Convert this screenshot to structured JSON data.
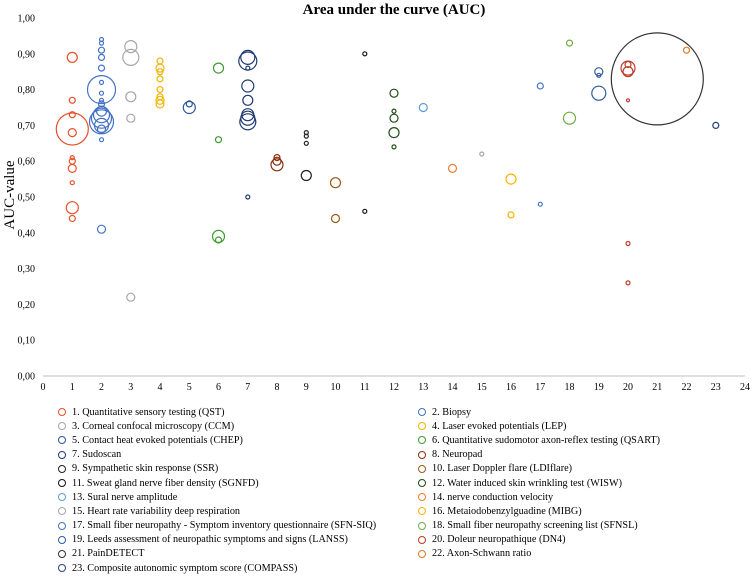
{
  "chart_data": {
    "type": "scatter",
    "title": "Area under the curve (AUC)",
    "xlabel": "",
    "ylabel": "AUC-value",
    "xlim": [
      0,
      24
    ],
    "ylim": [
      0,
      1
    ],
    "x_ticks": [
      "0",
      "1",
      "2",
      "3",
      "4",
      "5",
      "6",
      "7",
      "8",
      "9",
      "10",
      "11",
      "12",
      "13",
      "14",
      "15",
      "16",
      "17",
      "18",
      "19",
      "20",
      "21",
      "22",
      "23",
      "24"
    ],
    "y_ticks": [
      "0,00",
      "0,10",
      "0,20",
      "0,30",
      "0,40",
      "0,50",
      "0,60",
      "0,70",
      "0,80",
      "0,90",
      "1,00"
    ],
    "series": [
      {
        "name": "1. Quantitative sensory testing (QST)",
        "color": "#E8502A",
        "points": [
          [
            1,
            0.89,
            5
          ],
          [
            1,
            0.77,
            3
          ],
          [
            1,
            0.73,
            3
          ],
          [
            1,
            0.69,
            16
          ],
          [
            1,
            0.68,
            4
          ],
          [
            1,
            0.61,
            2
          ],
          [
            1,
            0.6,
            3
          ],
          [
            1,
            0.58,
            4
          ],
          [
            1,
            0.54,
            2
          ],
          [
            1,
            0.47,
            6
          ],
          [
            1,
            0.44,
            3
          ]
        ]
      },
      {
        "name": "2. Biopsy",
        "color": "#4472C4",
        "points": [
          [
            2,
            0.94,
            2
          ],
          [
            2,
            0.93,
            2
          ],
          [
            2,
            0.91,
            3
          ],
          [
            2,
            0.89,
            3
          ],
          [
            2,
            0.86,
            3
          ],
          [
            2,
            0.82,
            2
          ],
          [
            2,
            0.8,
            14
          ],
          [
            2,
            0.79,
            2
          ],
          [
            2,
            0.77,
            2
          ],
          [
            2,
            0.76,
            3
          ],
          [
            2,
            0.74,
            5
          ],
          [
            2,
            0.73,
            8
          ],
          [
            2,
            0.72,
            10
          ],
          [
            2,
            0.71,
            12
          ],
          [
            2,
            0.7,
            7
          ],
          [
            2,
            0.69,
            4
          ],
          [
            2,
            0.66,
            2
          ],
          [
            2,
            0.41,
            4
          ]
        ]
      },
      {
        "name": "3. Corneal confocal microscopy (CCM)",
        "color": "#A5A5A5",
        "points": [
          [
            3,
            0.92,
            6
          ],
          [
            3,
            0.89,
            8
          ],
          [
            3,
            0.78,
            5
          ],
          [
            3,
            0.72,
            4
          ],
          [
            3,
            0.22,
            4
          ]
        ]
      },
      {
        "name": "4. Laser evoked potentials (LEP)",
        "color": "#F4B400",
        "points": [
          [
            4,
            0.88,
            3
          ],
          [
            4,
            0.86,
            4
          ],
          [
            4,
            0.85,
            3
          ],
          [
            4,
            0.83,
            3
          ],
          [
            4,
            0.8,
            3
          ],
          [
            4,
            0.78,
            3
          ],
          [
            4,
            0.77,
            4
          ],
          [
            4,
            0.76,
            4
          ]
        ]
      },
      {
        "name": "5. Contact heat evoked potentials (CHEP)",
        "color": "#2F5597",
        "points": [
          [
            5,
            0.76,
            3
          ],
          [
            5,
            0.75,
            6
          ]
        ]
      },
      {
        "name": "6. Quantitative sudomotor axon-reflex testing (QSART)",
        "color": "#3C9A2E",
        "points": [
          [
            6,
            0.86,
            5
          ],
          [
            6,
            0.66,
            3
          ],
          [
            6,
            0.39,
            6
          ],
          [
            6,
            0.38,
            3
          ]
        ]
      },
      {
        "name": "7. Sudoscan",
        "color": "#1F3A72",
        "points": [
          [
            7,
            0.89,
            7
          ],
          [
            7,
            0.88,
            9
          ],
          [
            7,
            0.86,
            2
          ],
          [
            7,
            0.81,
            6
          ],
          [
            7,
            0.77,
            5
          ],
          [
            7,
            0.73,
            6
          ],
          [
            7,
            0.72,
            7
          ],
          [
            7,
            0.71,
            8
          ],
          [
            7,
            0.5,
            2
          ]
        ]
      },
      {
        "name": "8. Neuropad",
        "color": "#8B2F10",
        "points": [
          [
            8,
            0.61,
            3
          ],
          [
            8,
            0.6,
            4
          ],
          [
            8,
            0.59,
            6
          ]
        ]
      },
      {
        "name": "9. Sympathetic skin response (SSR)",
        "color": "#222222",
        "points": [
          [
            9,
            0.68,
            2
          ],
          [
            9,
            0.67,
            2
          ],
          [
            9,
            0.65,
            2
          ],
          [
            9,
            0.56,
            5
          ]
        ]
      },
      {
        "name": "10. Laser Doppler flare (LDIflare)",
        "color": "#9C5A1A",
        "points": [
          [
            10,
            0.54,
            5
          ],
          [
            10,
            0.44,
            4
          ]
        ]
      },
      {
        "name": "11. Sweat gland nerve fiber density (SGNFD)",
        "color": "#111111",
        "points": [
          [
            11,
            0.9,
            2
          ],
          [
            11,
            0.46,
            2
          ]
        ]
      },
      {
        "name": "12. Water induced skin wrinkling test (WISW)",
        "color": "#1E4D12",
        "points": [
          [
            12,
            0.79,
            4
          ],
          [
            12,
            0.74,
            2
          ],
          [
            12,
            0.72,
            4
          ],
          [
            12,
            0.68,
            5
          ],
          [
            12,
            0.64,
            2
          ]
        ]
      },
      {
        "name": "13. Sural nerve amplitude",
        "color": "#5B9BD5",
        "points": [
          [
            13,
            0.75,
            4
          ]
        ]
      },
      {
        "name": "14. nerve conduction velocity",
        "color": "#ED7D31",
        "points": [
          [
            14,
            0.58,
            4
          ]
        ]
      },
      {
        "name": "15. Heart rate variability deep respiration",
        "color": "#A5A5A5",
        "points": [
          [
            15,
            0.62,
            2
          ]
        ]
      },
      {
        "name": "16. Metaiodobenzylguadine (MIBG)",
        "color": "#FFB300",
        "points": [
          [
            16,
            0.55,
            5
          ],
          [
            16,
            0.45,
            3
          ]
        ]
      },
      {
        "name": "17. Small fiber neuropathy - Symptom inventory questionnaire (SFN-SIQ)",
        "color": "#4472C4",
        "points": [
          [
            17,
            0.81,
            3
          ],
          [
            17,
            0.48,
            2
          ]
        ]
      },
      {
        "name": "18. Small fiber neuropathy screening list (SFNSL)",
        "color": "#70AD47",
        "points": [
          [
            18,
            0.93,
            3
          ],
          [
            18,
            0.72,
            6
          ]
        ]
      },
      {
        "name": "19. Leeds assessment of neuropathic symptoms and signs (LANSS)",
        "color": "#2E5C9E",
        "points": [
          [
            19,
            0.85,
            4
          ],
          [
            19,
            0.84,
            2
          ],
          [
            19,
            0.79,
            7
          ]
        ]
      },
      {
        "name": "20. Doleur neuropathique (DN4)",
        "color": "#C0392B",
        "points": [
          [
            20,
            0.87,
            3
          ],
          [
            20,
            0.86,
            7
          ],
          [
            20,
            0.85,
            5
          ],
          [
            20,
            0.77,
            1.5
          ],
          [
            20,
            0.37,
            2
          ],
          [
            20,
            0.26,
            2
          ]
        ]
      },
      {
        "name": "21. PainDETECT",
        "color": "#333333",
        "points": [
          [
            21,
            0.83,
            46
          ]
        ]
      },
      {
        "name": "22. Axon-Schwann ratio",
        "color": "#E07A1F",
        "points": [
          [
            22,
            0.91,
            3
          ]
        ]
      },
      {
        "name": "23. Composite autonomic symptom score (COMPASS)",
        "color": "#264478",
        "points": [
          [
            23,
            0.7,
            3
          ]
        ]
      }
    ]
  }
}
